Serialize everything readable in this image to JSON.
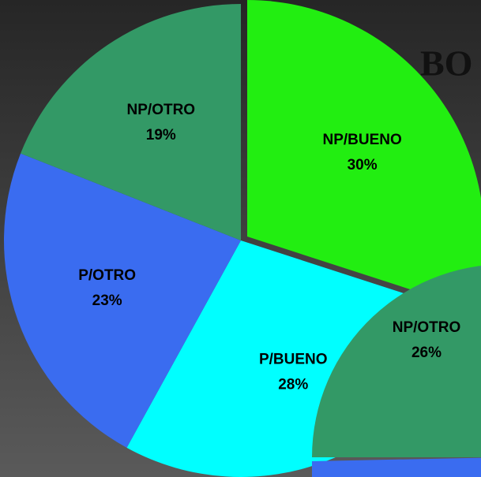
{
  "chart_data": [
    {
      "type": "pie",
      "title": "BO",
      "categories": [
        "NP/BUENO",
        "P/BUENO",
        "P/OTRO",
        "NP/OTRO"
      ],
      "values": [
        30,
        28,
        23,
        19
      ],
      "value_labels": [
        "30%",
        "28%",
        "23%",
        "19%"
      ],
      "colors": [
        "#22ee11",
        "#00ffff",
        "#3a6cf0",
        "#339966"
      ]
    },
    {
      "type": "pie",
      "categories": [
        "NP/OTRO"
      ],
      "values": [
        26
      ],
      "value_labels": [
        "26%"
      ],
      "colors": [
        "#339966"
      ]
    }
  ]
}
